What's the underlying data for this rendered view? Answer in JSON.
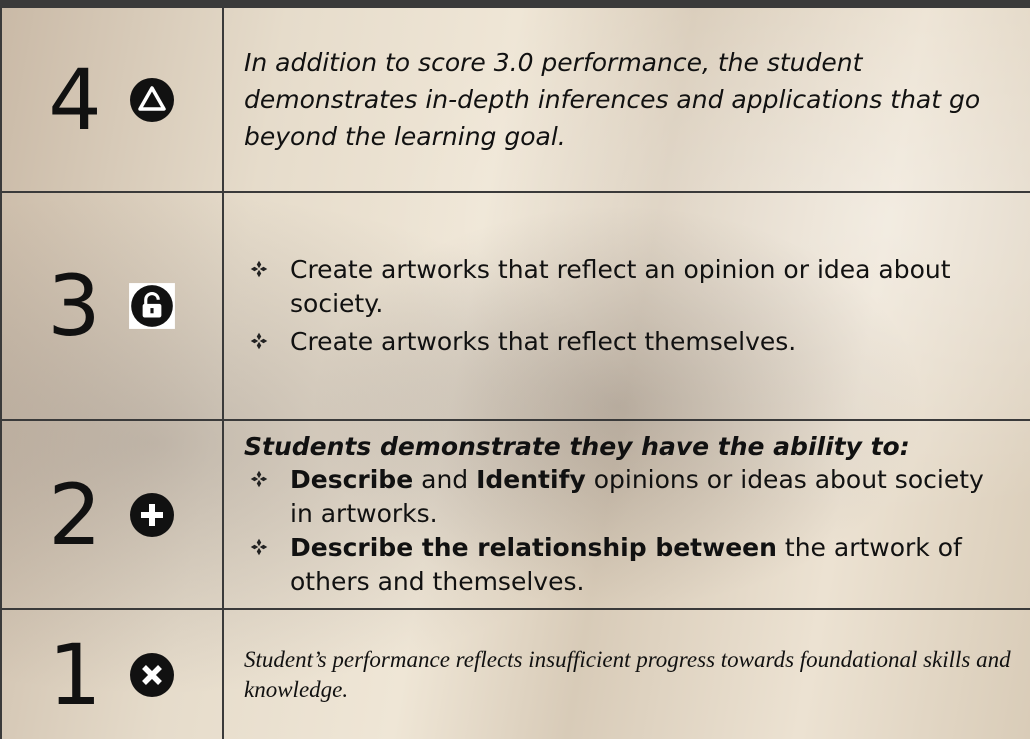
{
  "rows": [
    {
      "score": "4",
      "text": "In addition to score 3.0 performance, the student demonstrates in-depth inferences and applications that go beyond the learning goal."
    },
    {
      "score": "3",
      "bullets": [
        [
          {
            "text": "Create artworks that reflect an opinion or idea about society."
          }
        ],
        [
          {
            "text": "Create artworks that reflect themselves."
          }
        ]
      ]
    },
    {
      "score": "2",
      "heading": "Students demonstrate they have the ability to:",
      "bullets": [
        [
          {
            "text": "Describe",
            "bold": true
          },
          {
            "text": " and "
          },
          {
            "text": "Identify",
            "bold": true
          },
          {
            "text": " opinions or ideas about society in artworks."
          }
        ],
        [
          {
            "text": "Describe the relationship between",
            "bold": true
          },
          {
            "text": " the artwork of others and themselves."
          }
        ]
      ]
    },
    {
      "score": "1",
      "text": "Student’s performance reflects insufficient progress towards foundational skills and knowledge."
    }
  ]
}
